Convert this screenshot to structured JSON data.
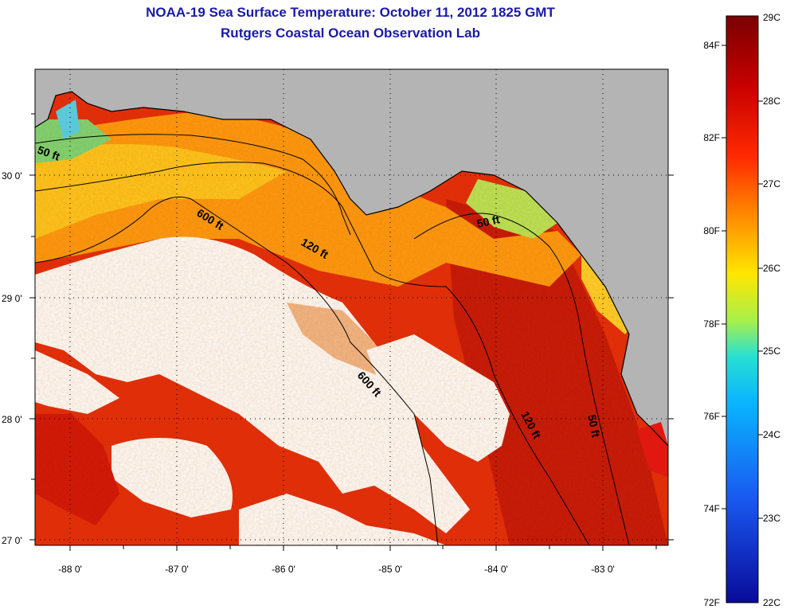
{
  "title": "NOAA-19 Sea Surface Temperature:  October 11, 2012 1825 GMT",
  "subtitle": "Rutgers Coastal Ocean Observation Lab",
  "map": {
    "lon_ticks": [
      "-88 0'",
      "-87 0'",
      "-86 0'",
      "-85 0'",
      "-84 0'",
      "-83 0'"
    ],
    "lat_ticks": [
      "30 0'",
      "29 0'",
      "28 0'",
      "27 0'"
    ],
    "land_color": "#b4b4b4",
    "cloud_color": "#ffffff",
    "contours": [
      {
        "label": "50 ft",
        "name": "contour-50ft-west"
      },
      {
        "label": "600 ft",
        "name": "contour-600ft-north"
      },
      {
        "label": "120 ft",
        "name": "contour-120ft-north"
      },
      {
        "label": "50 ft",
        "name": "contour-50ft-east"
      },
      {
        "label": "600 ft",
        "name": "contour-600ft-south"
      },
      {
        "label": "120 ft",
        "name": "contour-120ft-south"
      },
      {
        "label": "50 ft",
        "name": "contour-50ft-south"
      }
    ]
  },
  "colorbar": {
    "celsius": [
      "29C",
      "28C",
      "27C",
      "26C",
      "25C",
      "24C",
      "23C",
      "22C"
    ],
    "fahrenheit": [
      "84F",
      "82F",
      "80F",
      "78F",
      "76F",
      "74F",
      "72F"
    ],
    "colors": [
      "#7a0000",
      "#c80000",
      "#ff2a00",
      "#ff8a00",
      "#ffe600",
      "#a6f04a",
      "#28e0d2",
      "#0ab4ff",
      "#1a5af0",
      "#0a0a9a"
    ]
  }
}
